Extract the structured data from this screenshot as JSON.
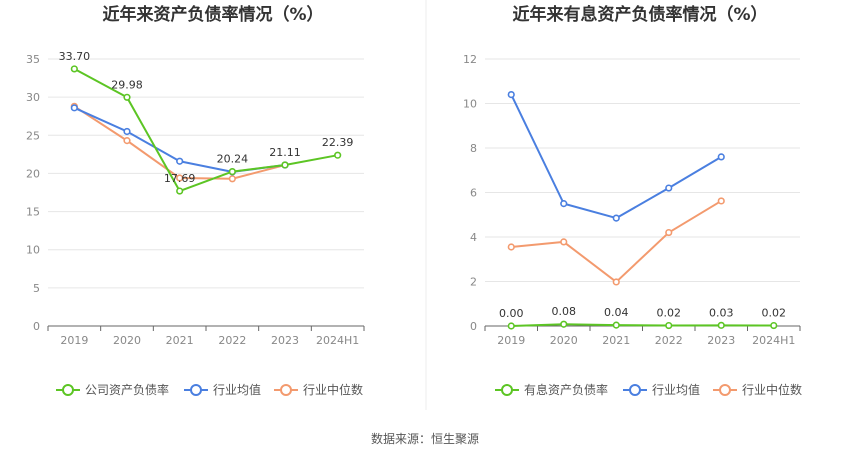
{
  "source": "数据来源：恒生聚源",
  "chart_data": [
    {
      "type": "line",
      "title": "近年来资产负债率情况（%）",
      "categories": [
        "2019",
        "2020",
        "2021",
        "2022",
        "2023",
        "2024H1"
      ],
      "ylim": [
        0,
        35
      ],
      "yticks": [
        0,
        5,
        10,
        15,
        20,
        25,
        30,
        35
      ],
      "grid": true,
      "legend_position": "bottom",
      "series": [
        {
          "name": "公司资产负债率",
          "color": "#5cc524",
          "values": [
            33.7,
            29.98,
            17.69,
            20.24,
            21.11,
            22.39
          ],
          "labels": [
            "33.70",
            "29.98",
            "17.69",
            "20.24",
            "21.11",
            "22.39"
          ]
        },
        {
          "name": "行业均值",
          "color": "#4a7fe0",
          "values": [
            28.6,
            25.5,
            21.6,
            20.2,
            21.1,
            null
          ]
        },
        {
          "name": "行业中位数",
          "color": "#f39a6e",
          "values": [
            28.8,
            24.3,
            19.4,
            19.3,
            21.1,
            null
          ]
        }
      ]
    },
    {
      "type": "line",
      "title": "近年来有息资产负债率情况（%）",
      "categories": [
        "2019",
        "2020",
        "2021",
        "2022",
        "2023",
        "2024H1"
      ],
      "ylim": [
        0,
        12
      ],
      "yticks": [
        0,
        2,
        4,
        6,
        8,
        10,
        12
      ],
      "grid": true,
      "legend_position": "bottom",
      "series": [
        {
          "name": "有息资产负债率",
          "color": "#5cc524",
          "values": [
            0.0,
            0.08,
            0.04,
            0.02,
            0.03,
            0.02
          ],
          "labels": [
            "0.00",
            "0.08",
            "0.04",
            "0.02",
            "0.03",
            "0.02"
          ]
        },
        {
          "name": "行业均值",
          "color": "#4a7fe0",
          "values": [
            10.4,
            5.5,
            4.85,
            6.2,
            7.6,
            null
          ]
        },
        {
          "name": "行业中位数",
          "color": "#f39a6e",
          "values": [
            3.55,
            3.78,
            1.98,
            4.2,
            5.62,
            null
          ]
        }
      ]
    }
  ]
}
